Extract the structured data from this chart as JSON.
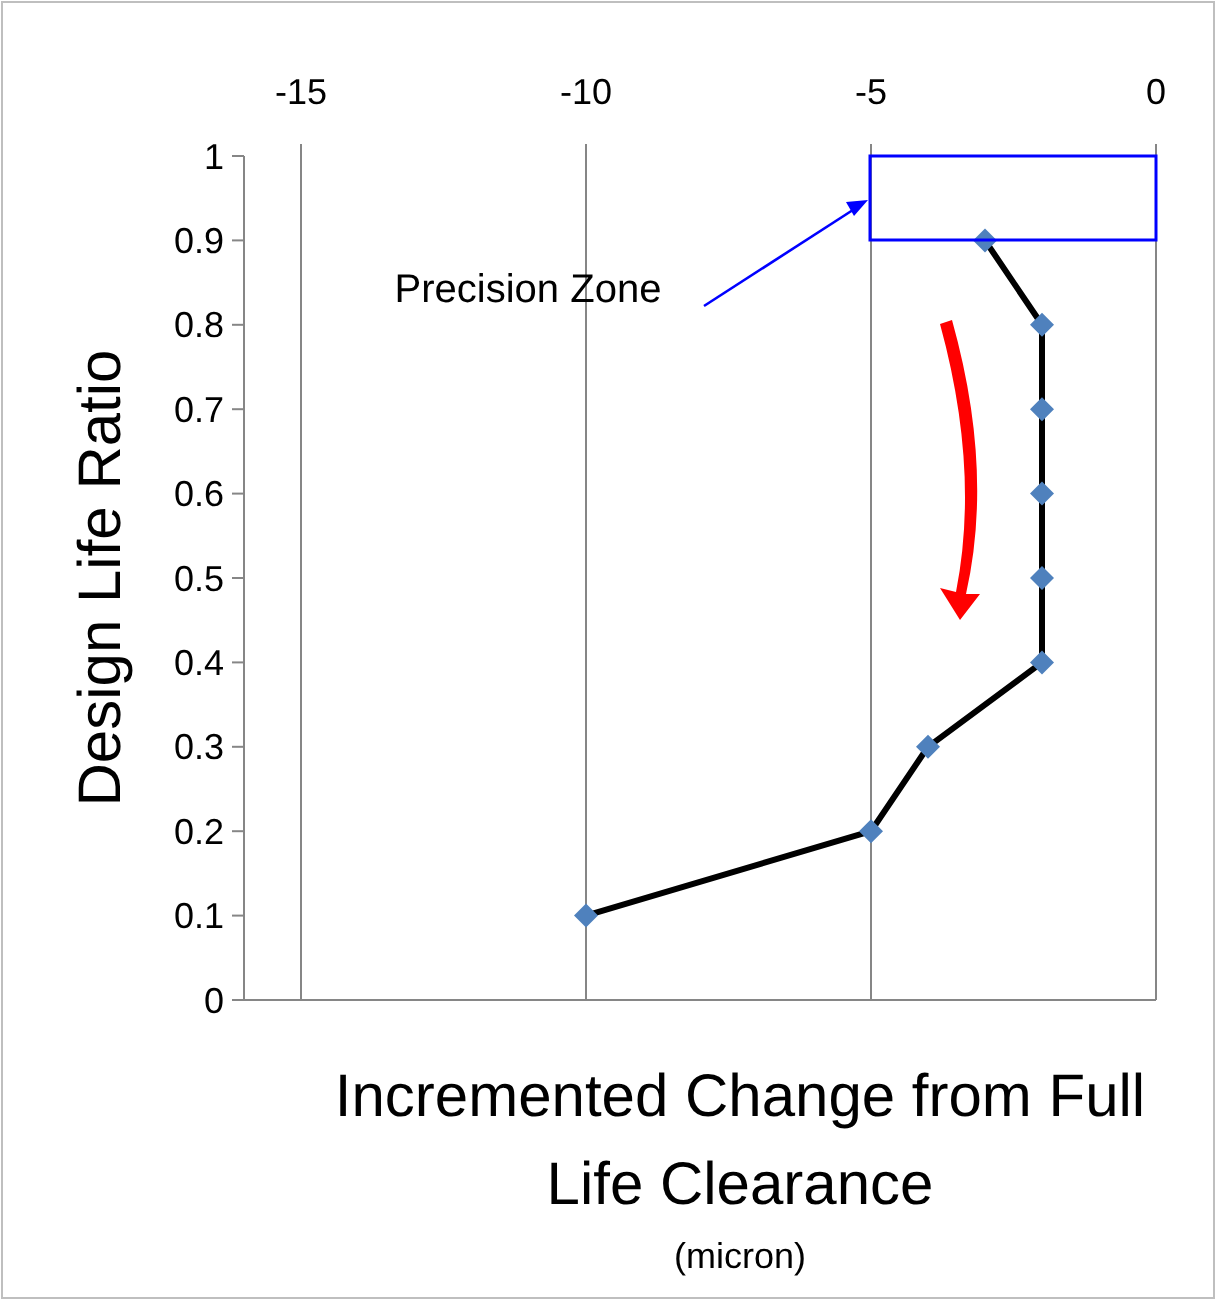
{
  "chart_data": {
    "type": "line",
    "xlabel": "Incremented Change from Full Life Clearance",
    "ylabel": "Design Life Ratio",
    "series": [
      {
        "color": "#000000",
        "values": [
          0.9,
          0.8,
          0.7,
          0.6,
          0.5,
          0.4,
          0.3,
          0.2,
          0.1
        ],
        "x": [
          -3,
          -2,
          -2,
          -2,
          -2,
          -2,
          -4,
          -5,
          -10
        ],
        "marker": "diamond"
      }
    ],
    "xlim": [
      -16,
      0
    ],
    "xticks": [
      -15,
      -10,
      -5,
      0
    ],
    "ylim": [
      0,
      1
    ],
    "yticks": [
      0,
      0.1,
      0.2,
      0.3,
      0.4,
      0.5,
      0.6,
      0.7,
      0.8,
      0.9,
      1
    ],
    "grid": "x",
    "line_style": "solid",
    "annotations": [
      "Precision Zone",
      "(micron)"
    ]
  }
}
